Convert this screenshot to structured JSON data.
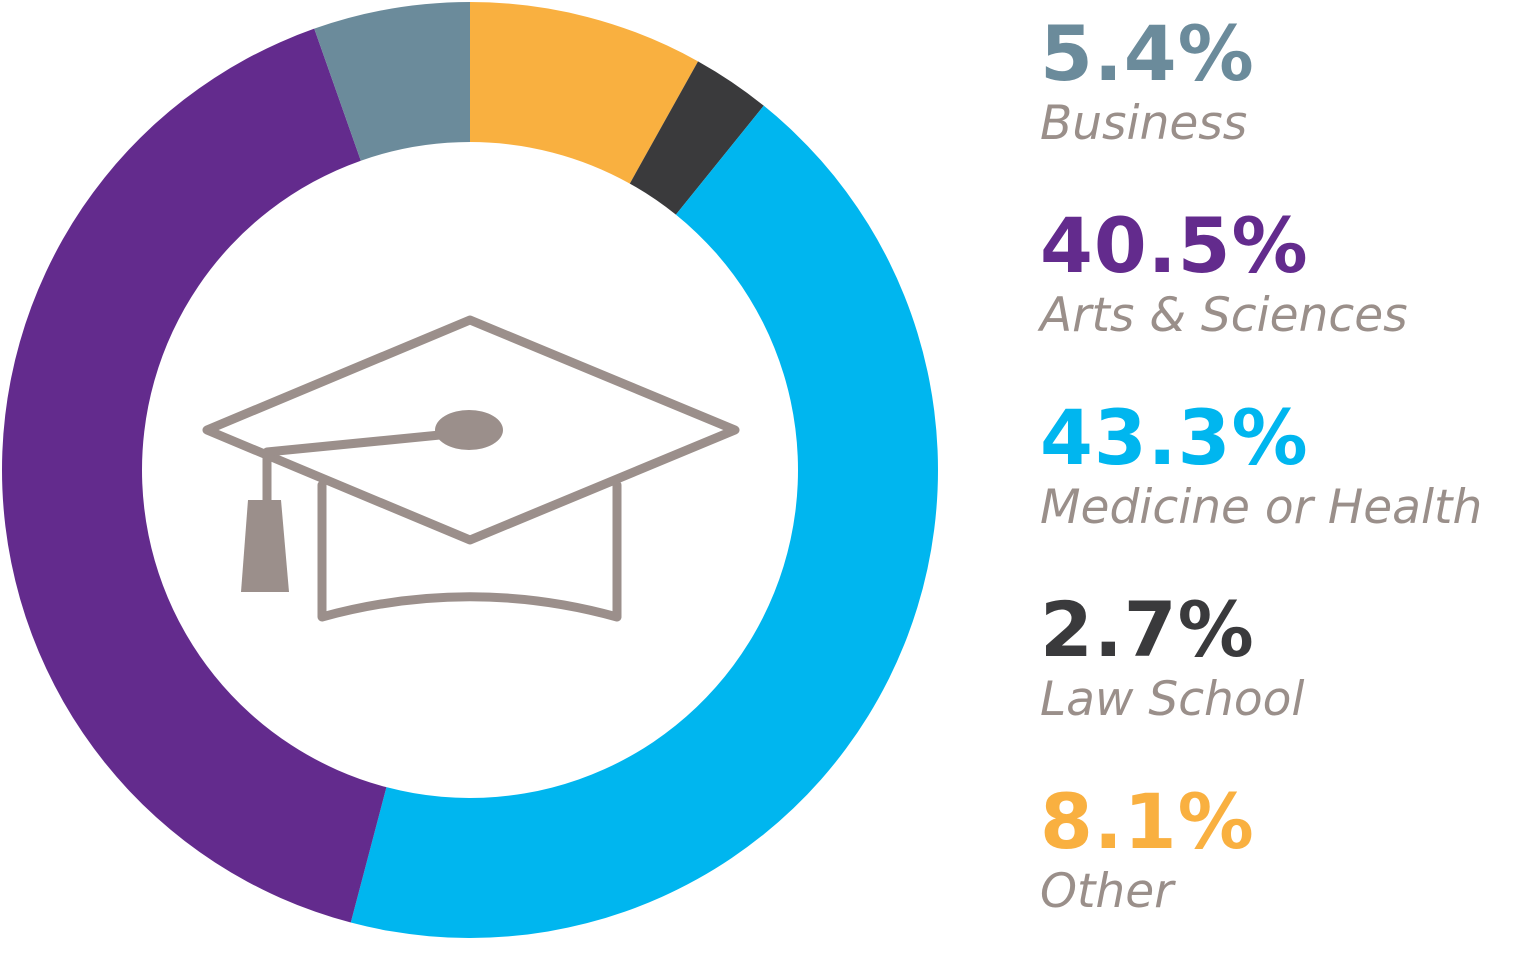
{
  "chart_data": {
    "type": "pie",
    "variant": "donut",
    "categories": [
      "Other",
      "Law School",
      "Medicine or Health",
      "Arts & Sciences",
      "Business"
    ],
    "values": [
      8.1,
      2.7,
      43.3,
      40.5,
      5.4
    ],
    "colors": [
      "#f9b040",
      "#3a3a3c",
      "#00b6ef",
      "#632b8d",
      "#6b8b9b"
    ],
    "start_angle_deg": 0,
    "direction": "clockwise",
    "legend": {
      "position": "right",
      "items": [
        {
          "value": "5.4%",
          "label": "Business",
          "color": "#6b8b9b"
        },
        {
          "value": "40.5%",
          "label": "Arts & Sciences",
          "color": "#632b8d"
        },
        {
          "value": "43.3%",
          "label": "Medicine or Health",
          "color": "#00b6ef"
        },
        {
          "value": "2.7%",
          "label": "Law School",
          "color": "#3a3a3c"
        },
        {
          "value": "8.1%",
          "label": "Other",
          "color": "#f9b040"
        }
      ]
    },
    "center_icon": "graduation-cap-icon",
    "icon_color": "#9b8f8b",
    "label_color": "#9a8f8a"
  }
}
